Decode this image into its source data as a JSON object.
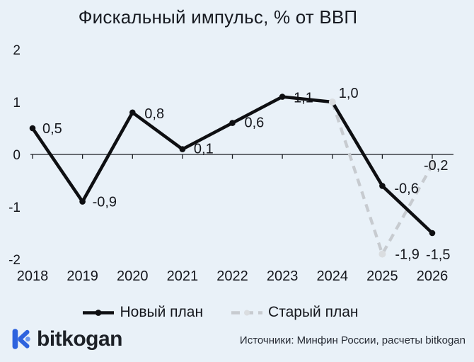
{
  "title": "Фискальный импульс, % от ВВП",
  "chart_data": {
    "type": "line",
    "title": "Фискальный импульс, % от ВВП",
    "x": [
      2018,
      2019,
      2020,
      2021,
      2022,
      2023,
      2024,
      2025,
      2026
    ],
    "ylim": [
      -2,
      2
    ],
    "yticks": [
      {
        "v": 2,
        "label": "2"
      },
      {
        "v": 1,
        "label": "1"
      },
      {
        "v": 0,
        "label": "0"
      },
      {
        "v": -1,
        "label": "-1"
      },
      {
        "v": -2,
        "label": "-2"
      }
    ],
    "grid": false,
    "legend_position": "bottom",
    "series": [
      {
        "name": "Новый план",
        "style": "solid",
        "color": "#0e0f12",
        "values": [
          0.5,
          -0.9,
          0.8,
          0.1,
          0.6,
          1.1,
          1.0,
          -0.6,
          -1.5
        ],
        "labels": [
          "0,5",
          "-0,9",
          "0,8",
          "0,1",
          "0,6",
          "1,1",
          "1,0",
          "-0,6",
          "-1,5"
        ]
      },
      {
        "name": "Старый план",
        "style": "dashed",
        "color": "#c7cbd0",
        "values": [
          null,
          null,
          null,
          null,
          null,
          null,
          1.0,
          -1.9,
          -0.2
        ],
        "labels": [
          null,
          null,
          null,
          null,
          null,
          null,
          null,
          "-1,9",
          "-0,2"
        ]
      }
    ]
  },
  "footer": {
    "logo_text": "bitkogan",
    "source": "Источники: Минфин России, расчеты bitkogan"
  },
  "colors": {
    "background": "#e9f1f8",
    "text": "#15171d",
    "axis": "#1b1d22",
    "new_plan": "#0e0f12",
    "old_plan": "#c7cbd0",
    "old_plan_marker": "#dadde0",
    "logo_blue": "#2e63de",
    "logo_blue_light": "#6d98ef"
  }
}
